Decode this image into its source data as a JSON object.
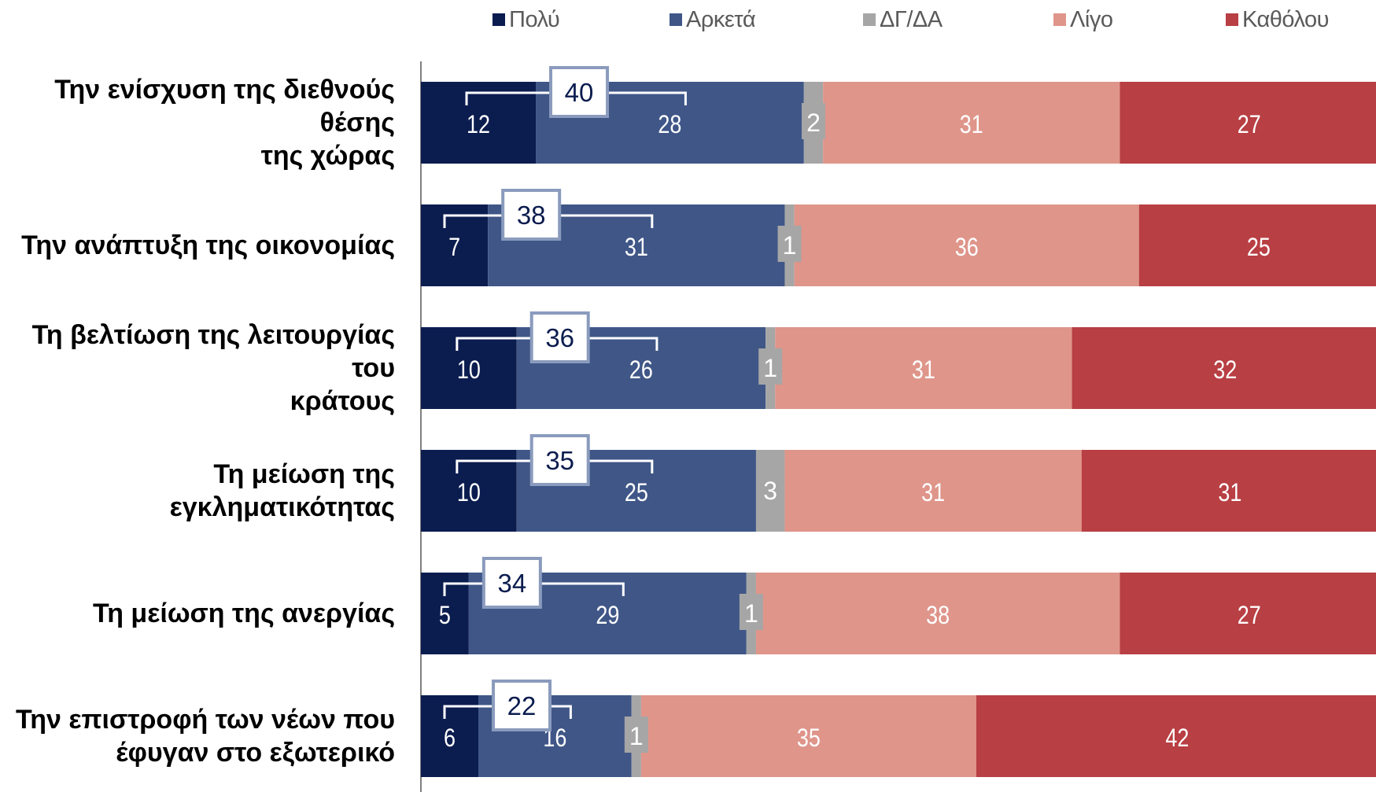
{
  "legend": [
    {
      "label": "Πολύ",
      "color": "#0b1c4f"
    },
    {
      "label": "Αρκετά",
      "color": "#3f5687"
    },
    {
      "label": "ΔΓ/ΔΑ",
      "color": "#a6a6a6"
    },
    {
      "label": "Λίγο",
      "color": "#df958a"
    },
    {
      "label": "Καθόλου",
      "color": "#b83f43"
    }
  ],
  "chart_data": {
    "type": "bar",
    "orientation": "horizontal",
    "stacked": true,
    "categories": [
      [
        "Την ενίσχυση της διεθνούς θέσης",
        "της χώρας"
      ],
      [
        "Την ανάπτυξη της οικονομίας"
      ],
      [
        "Τη βελτίωση της λειτουργίας του",
        "κράτους"
      ],
      [
        "Τη μείωση της εγκληματικότητας"
      ],
      [
        "Τη μείωση της ανεργίας"
      ],
      [
        "Την επιστροφή των νέων που",
        "έφυγαν στο εξωτερικό"
      ]
    ],
    "series": [
      {
        "name": "Πολύ",
        "color": "#0b1c4f",
        "values": [
          12,
          7,
          10,
          10,
          5,
          6
        ]
      },
      {
        "name": "Αρκετά",
        "color": "#3f5687",
        "values": [
          28,
          31,
          26,
          25,
          29,
          16
        ]
      },
      {
        "name": "ΔΓ/ΔΑ",
        "color": "#a6a6a6",
        "values": [
          2,
          1,
          1,
          3,
          1,
          1
        ]
      },
      {
        "name": "Λίγο",
        "color": "#df958a",
        "values": [
          31,
          36,
          31,
          31,
          38,
          35
        ]
      },
      {
        "name": "Καθόλου",
        "color": "#b83f43",
        "values": [
          27,
          25,
          32,
          31,
          27,
          42
        ]
      }
    ],
    "totals_pol_arketa": [
      40,
      38,
      36,
      35,
      34,
      22
    ],
    "xlim": [
      0,
      100
    ],
    "legend_position": "top"
  }
}
